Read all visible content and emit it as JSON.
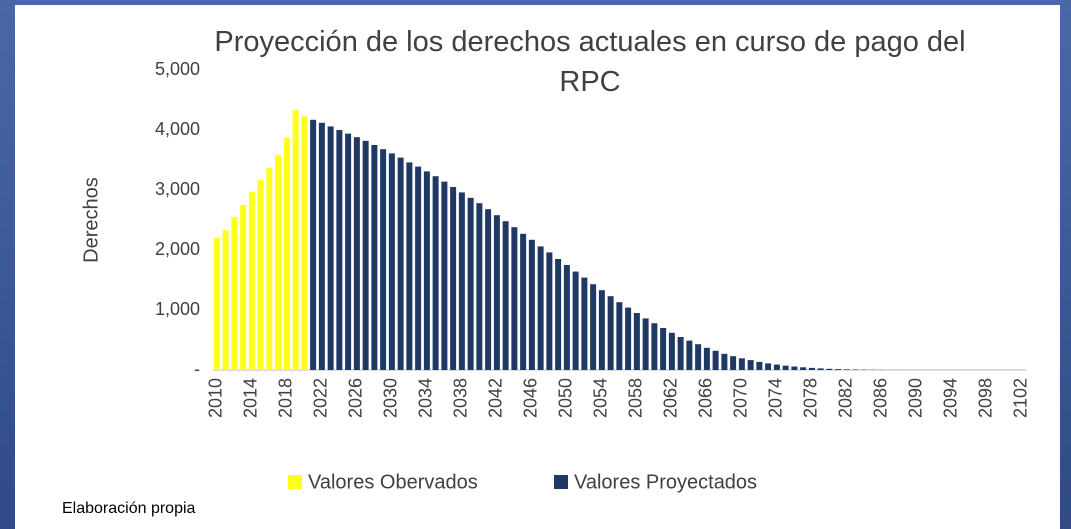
{
  "chart_data": {
    "type": "bar",
    "title": "Proyección de los derechos actuales en curso de pago del RPC",
    "y_label": "Derechos",
    "source": "Elaboración propia",
    "categories": [
      "2010",
      null,
      null,
      null,
      "2014",
      null,
      null,
      null,
      "2018",
      null,
      null,
      null,
      "2022",
      null,
      null,
      null,
      "2026",
      null,
      null,
      null,
      "2030",
      null,
      null,
      null,
      "2034",
      null,
      null,
      null,
      "2038",
      null,
      null,
      null,
      "2042",
      null,
      null,
      null,
      "2046",
      null,
      null,
      null,
      "2050",
      null,
      null,
      null,
      "2054",
      null,
      null,
      null,
      "2058",
      null,
      null,
      null,
      "2062",
      null,
      null,
      null,
      "2066",
      null,
      null,
      null,
      "2070",
      null,
      null,
      null,
      "2074",
      null,
      null,
      null,
      "2078",
      null,
      null,
      null,
      "2082",
      null,
      null,
      null,
      "2086",
      null,
      null,
      null,
      "2090",
      null,
      null,
      null,
      "2094",
      null,
      null,
      null,
      "2098",
      null,
      null,
      null,
      "2102"
    ],
    "series": [
      {
        "name": "Valores Obervados",
        "color": "#ffff1a",
        "values": [
          2200,
          2330,
          2550,
          2750,
          2970,
          3170,
          3370,
          3580,
          3870,
          4330,
          4230,
          null,
          null,
          null,
          null,
          null,
          null,
          null,
          null,
          null,
          null,
          null,
          null,
          null,
          null,
          null,
          null,
          null,
          null,
          null,
          null,
          null,
          null,
          null,
          null,
          null,
          null,
          null,
          null,
          null,
          null,
          null,
          null,
          null,
          null,
          null,
          null,
          null,
          null,
          null,
          null,
          null,
          null,
          null,
          null,
          null,
          null,
          null,
          null,
          null,
          null,
          null,
          null,
          null,
          null,
          null,
          null,
          null,
          null,
          null,
          null,
          null,
          null,
          null,
          null,
          null,
          null,
          null,
          null,
          null,
          null,
          null,
          null,
          null,
          null,
          null,
          null,
          null,
          null,
          null,
          null,
          null,
          null
        ]
      },
      {
        "name": "Valores Proyectados",
        "color": "#1f3864",
        "values": [
          null,
          null,
          null,
          null,
          null,
          null,
          null,
          null,
          null,
          null,
          null,
          4170,
          4120,
          4060,
          4000,
          3940,
          3880,
          3820,
          3750,
          3680,
          3610,
          3540,
          3460,
          3390,
          3310,
          3230,
          3140,
          3050,
          2960,
          2870,
          2780,
          2680,
          2580,
          2480,
          2380,
          2270,
          2170,
          2060,
          1960,
          1850,
          1750,
          1640,
          1540,
          1430,
          1330,
          1230,
          1130,
          1040,
          950,
          860,
          780,
          700,
          620,
          550,
          490,
          430,
          370,
          320,
          270,
          230,
          195,
          165,
          135,
          110,
          90,
          72,
          58,
          45,
          35,
          27,
          20,
          15,
          11,
          8,
          6,
          4,
          3,
          2,
          2,
          1,
          1,
          1,
          1,
          1,
          1,
          1,
          1,
          1,
          1,
          1,
          1,
          1,
          1
        ]
      }
    ],
    "ylim": [
      0,
      5000
    ],
    "yticks": [
      {
        "value": 0,
        "label": "-"
      },
      {
        "value": 1000,
        "label": "1,000"
      },
      {
        "value": 2000,
        "label": "2,000"
      },
      {
        "value": 3000,
        "label": "3,000"
      },
      {
        "value": 4000,
        "label": "4,000"
      },
      {
        "value": 5000,
        "label": "5,000"
      }
    ],
    "grid": false
  }
}
